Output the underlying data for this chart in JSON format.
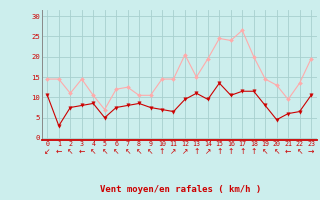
{
  "x": [
    0,
    1,
    2,
    3,
    4,
    5,
    6,
    7,
    8,
    9,
    10,
    11,
    12,
    13,
    14,
    15,
    16,
    17,
    18,
    19,
    20,
    21,
    22,
    23
  ],
  "wind_mean": [
    10.5,
    3.0,
    7.5,
    8.0,
    8.5,
    5.0,
    7.5,
    8.0,
    8.5,
    7.5,
    7.0,
    6.5,
    9.5,
    11.0,
    9.5,
    13.5,
    10.5,
    11.5,
    11.5,
    8.0,
    4.5,
    6.0,
    6.5,
    10.5
  ],
  "wind_gust": [
    14.5,
    14.5,
    11.0,
    14.5,
    10.5,
    7.0,
    12.0,
    12.5,
    10.5,
    10.5,
    14.5,
    14.5,
    20.5,
    15.0,
    19.5,
    24.5,
    24.0,
    26.5,
    20.0,
    14.5,
    13.0,
    9.5,
    13.5,
    19.5
  ],
  "arrows": [
    "↙",
    "←",
    "↖",
    "←",
    "↖",
    "↖",
    "↖",
    "↖",
    "↖",
    "↖",
    "↑",
    "↗",
    "↗",
    "↑",
    "↗",
    "↑",
    "↑",
    "↑",
    "↑",
    "↖",
    "↖",
    "←",
    "↖",
    "→"
  ],
  "mean_color": "#cc0000",
  "gust_color": "#ffaaaa",
  "bg_color": "#cceeed",
  "grid_color": "#a8d0ce",
  "xlabel": "Vent moyen/en rafales ( km/h )",
  "yticks": [
    0,
    5,
    10,
    15,
    20,
    25,
    30
  ],
  "ylim": [
    -0.5,
    31.5
  ],
  "xlim": [
    -0.5,
    23.5
  ]
}
